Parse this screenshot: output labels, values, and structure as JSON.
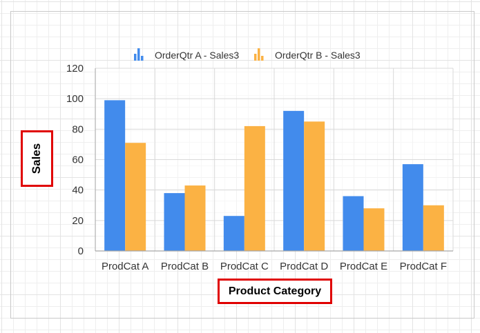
{
  "chart_data": {
    "type": "bar",
    "categories": [
      "ProdCat A",
      "ProdCat B",
      "ProdCat C",
      "ProdCat D",
      "ProdCat E",
      "ProdCat F"
    ],
    "series": [
      {
        "name": "OrderQtr A - Sales3",
        "color": "#428bec",
        "values": [
          99,
          38,
          23,
          92,
          36,
          57
        ]
      },
      {
        "name": "OrderQtr B - Sales3",
        "color": "#fbb244",
        "values": [
          71,
          43,
          82,
          85,
          28,
          30
        ]
      }
    ],
    "xlabel": "Product Category",
    "ylabel": "Sales",
    "ylim": [
      0,
      120
    ],
    "yticks": [
      0,
      20,
      40,
      60,
      80,
      100,
      120
    ],
    "grid": true,
    "legend_position": "top-center"
  }
}
